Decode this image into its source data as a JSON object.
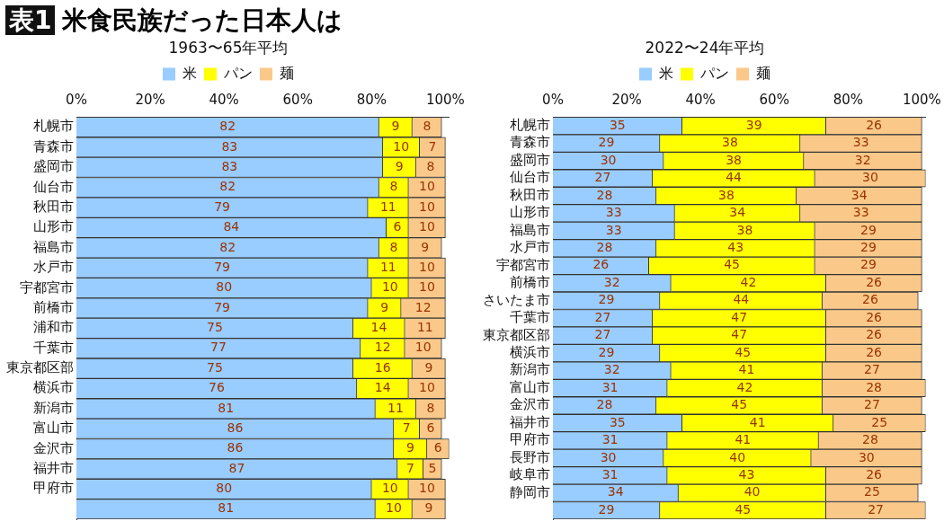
{
  "chart_data": [
    {
      "type": "bar",
      "orientation": "horizontal",
      "stacked": true,
      "title": "表1 米食民族だった日本人は",
      "subtitle": "1963〜65年平均",
      "legend": "top",
      "data_labels": true,
      "grid": false,
      "categories": [
        "札幌市",
        "青森市",
        "盛岡市",
        "仙台市",
        "秋田市",
        "山形市",
        "福島市",
        "水戸市",
        "宇都宮市",
        "前橋市",
        "浦和市",
        "千葉市",
        "東京都区部",
        "横浜市",
        "新潟市",
        "富山市",
        "金沢市",
        "福井市",
        "甲府市",
        null
      ],
      "xlim": [
        0,
        101
      ],
      "xticks": [
        {
          "value": 0,
          "label": "0%"
        },
        {
          "value": 20,
          "label": "20%"
        },
        {
          "value": 40,
          "label": "40%"
        },
        {
          "value": 60,
          "label": "60%"
        },
        {
          "value": 80,
          "label": "80%"
        },
        {
          "value": 100,
          "label": "100%"
        }
      ],
      "series": [
        {
          "name": "米",
          "color": "#99ccff",
          "values": [
            82,
            83,
            83,
            82,
            79,
            84,
            82,
            79,
            80,
            79,
            75,
            77,
            75,
            76,
            81,
            86,
            86,
            87,
            80,
            81
          ]
        },
        {
          "name": "パン",
          "color": "#ffff00",
          "values": [
            9,
            10,
            9,
            8,
            11,
            6,
            8,
            11,
            10,
            9,
            14,
            12,
            16,
            14,
            11,
            7,
            9,
            7,
            10,
            10
          ]
        },
        {
          "name": "麺",
          "color": "#fac98a",
          "values": [
            8,
            7,
            8,
            10,
            10,
            10,
            9,
            10,
            10,
            12,
            11,
            10,
            9,
            10,
            8,
            6,
            6,
            5,
            10,
            9
          ]
        }
      ]
    },
    {
      "type": "bar",
      "orientation": "horizontal",
      "stacked": true,
      "subtitle": "2022〜24年平均",
      "legend": "top",
      "data_labels": true,
      "grid": false,
      "categories": [
        "札幌市",
        "青森市",
        "盛岡市",
        "仙台市",
        "秋田市",
        "山形市",
        "福島市",
        "水戸市",
        "宇都宮市",
        "前橋市",
        "さいたま市",
        "千葉市",
        "東京都区部",
        "横浜市",
        "新潟市",
        "富山市",
        "金沢市",
        "福井市",
        "甲府市",
        "長野市",
        "岐阜市",
        "静岡市",
        null
      ],
      "xlim": [
        0,
        101
      ],
      "xticks": [
        {
          "value": 0,
          "label": "0%"
        },
        {
          "value": 20,
          "label": "20%"
        },
        {
          "value": 40,
          "label": "40%"
        },
        {
          "value": 60,
          "label": "60%"
        },
        {
          "value": 80,
          "label": "80%"
        },
        {
          "value": 100,
          "label": "100%"
        }
      ],
      "series": [
        {
          "name": "米",
          "color": "#99ccff",
          "values": [
            35,
            29,
            30,
            27,
            28,
            33,
            33,
            28,
            26,
            32,
            29,
            27,
            27,
            29,
            32,
            31,
            28,
            35,
            31,
            30,
            31,
            34,
            29
          ]
        },
        {
          "name": "パン",
          "color": "#ffff00",
          "values": [
            39,
            38,
            38,
            44,
            38,
            34,
            38,
            43,
            45,
            42,
            44,
            47,
            47,
            45,
            41,
            42,
            45,
            41,
            41,
            40,
            43,
            40,
            45
          ]
        },
        {
          "name": "麺",
          "color": "#fac98a",
          "values": [
            26,
            33,
            32,
            30,
            34,
            33,
            29,
            29,
            29,
            26,
            26,
            26,
            26,
            26,
            27,
            28,
            27,
            25,
            28,
            30,
            26,
            25,
            27
          ]
        }
      ]
    }
  ]
}
